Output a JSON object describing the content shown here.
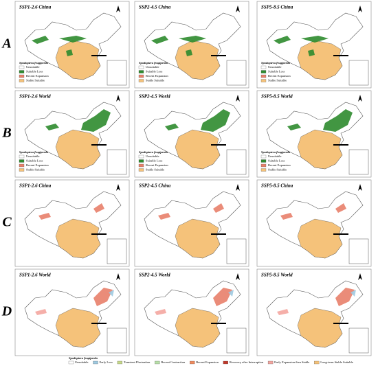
{
  "rows": [
    {
      "label": "A",
      "panels": [
        {
          "title": "SSP1-2.6 China"
        },
        {
          "title": "SSP2-4.5 China"
        },
        {
          "title": "SSP5-8.5 China"
        }
      ],
      "legend": {
        "title": "Spodoptera frugiperda",
        "items": [
          {
            "label": "Unsuitable",
            "color": "#ffffff"
          },
          {
            "label": "Suitable Loss",
            "color": "#2e8b2e"
          },
          {
            "label": "Recent Expansion",
            "color": "#e8806a"
          },
          {
            "label": "Stable Suitable",
            "color": "#f5c27a"
          }
        ]
      }
    },
    {
      "label": "B",
      "panels": [
        {
          "title": "SSP1-2.6 World"
        },
        {
          "title": "SSP2-4.5 World"
        },
        {
          "title": "SSP5-8.5 World"
        }
      ],
      "legend": {
        "title": "Spodoptera frugiperda",
        "items": [
          {
            "label": "Unsuitable",
            "color": "#ffffff"
          },
          {
            "label": "Suitable Loss",
            "color": "#2e8b2e"
          },
          {
            "label": "Recent Expansion",
            "color": "#e8806a"
          },
          {
            "label": "Stable Suitable",
            "color": "#f5c27a"
          }
        ]
      }
    },
    {
      "label": "C",
      "panels": [
        {
          "title": "SSP1-2.6 China"
        },
        {
          "title": "SSP2-4.5 China"
        },
        {
          "title": "SSP5-8.5 China"
        }
      ]
    },
    {
      "label": "D",
      "panels": [
        {
          "title": "SSP1-2.6 World"
        },
        {
          "title": "SSP2-4.5 World"
        },
        {
          "title": "SSP5-8.5 World"
        }
      ]
    }
  ],
  "bottom_legend": {
    "title": "Spodoptera frugiperda",
    "items": [
      {
        "label": "Unsuitable",
        "color": "#ffffff"
      },
      {
        "label": "Early Loss",
        "color": "#9ecae1"
      },
      {
        "label": "Transient Fluctuation",
        "color": "#c7d98a"
      },
      {
        "label": "Recent Contraction",
        "color": "#b8e0a8"
      },
      {
        "label": "Recent Expansion",
        "color": "#f08a5d"
      },
      {
        "label": "Recovery after Interruption",
        "color": "#c0392b"
      },
      {
        "label": "Early Expansion then Stable",
        "color": "#f4a6a0"
      },
      {
        "label": "Long-term Stable Suitable",
        "color": "#f5c27a"
      }
    ]
  }
}
